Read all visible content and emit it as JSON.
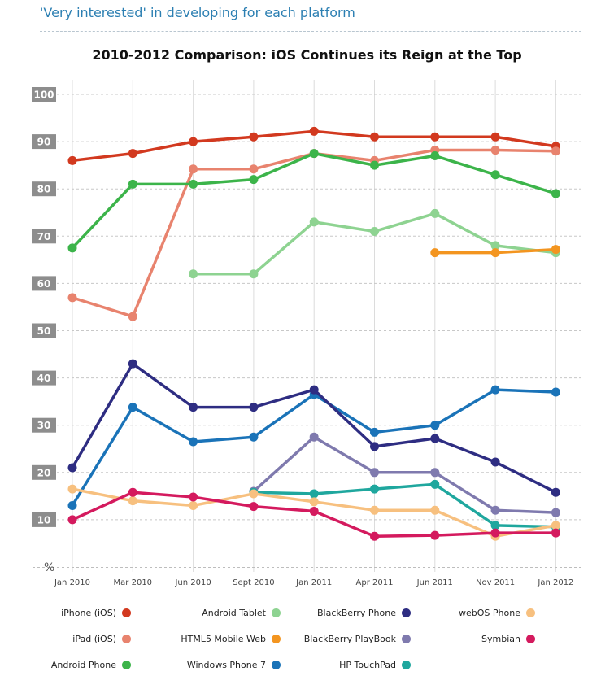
{
  "header": {
    "title": "'Very interested' in developing for each platform"
  },
  "chart_data": {
    "type": "line",
    "title": "2010-2012 Comparison: iOS Continues its Reign at the Top",
    "ylabel": "%",
    "xlabel": "",
    "ylim": [
      0,
      100
    ],
    "yticks": [
      "10",
      "20",
      "30",
      "40",
      "50",
      "60",
      "70",
      "80",
      "90",
      "100"
    ],
    "categories": [
      "Jan 2010",
      "Mar 2010",
      "Jun 2010",
      "Sept 2010",
      "Jan 2011",
      "Apr 2011",
      "Jun 2011",
      "Nov 2011",
      "Jan 2012"
    ],
    "grid": true,
    "legend_position": "bottom",
    "series": [
      {
        "name": "iPhone (iOS)",
        "color": "#d2391f",
        "values": [
          86,
          87.5,
          90,
          91,
          92.2,
          91,
          91,
          91,
          89
        ]
      },
      {
        "name": "iPad (iOS)",
        "color": "#e8836e",
        "values": [
          57,
          53,
          84.2,
          84.2,
          87.5,
          86,
          88.2,
          88.2,
          88
        ]
      },
      {
        "name": "Android Phone",
        "color": "#3cb44a",
        "values": [
          67.5,
          81,
          81,
          82,
          87.5,
          85,
          87,
          83,
          79
        ]
      },
      {
        "name": "Android Tablet",
        "color": "#8ed391",
        "values": [
          null,
          null,
          62,
          62,
          73,
          71,
          74.8,
          68,
          66.5
        ]
      },
      {
        "name": "HTML5 Mobile Web",
        "color": "#f39520",
        "values": [
          null,
          null,
          null,
          null,
          null,
          null,
          66.5,
          66.5,
          67.2
        ]
      },
      {
        "name": "Windows Phone 7",
        "color": "#1a73b8",
        "values": [
          13,
          33.8,
          26.5,
          27.5,
          36.5,
          28.5,
          30,
          37.5,
          37
        ]
      },
      {
        "name": "BlackBerry Phone",
        "color": "#2e2d82",
        "values": [
          21,
          43,
          33.8,
          33.8,
          37.5,
          25.5,
          27.2,
          22.2,
          15.8
        ]
      },
      {
        "name": "BlackBerry PlayBook",
        "color": "#7f7aae",
        "values": [
          null,
          null,
          null,
          16,
          27.5,
          20,
          20,
          12,
          11.5
        ]
      },
      {
        "name": "HP TouchPad",
        "color": "#1fa79e",
        "values": [
          null,
          null,
          null,
          15.8,
          15.5,
          16.5,
          17.5,
          8.8,
          8.5
        ]
      },
      {
        "name": "webOS Phone",
        "color": "#f7c07f",
        "values": [
          16.5,
          14,
          13,
          15.5,
          13.8,
          12,
          12,
          6.5,
          8.8
        ]
      },
      {
        "name": "Symbian",
        "color": "#d41a5e",
        "values": [
          10,
          15.8,
          14.8,
          12.8,
          11.8,
          6.5,
          6.7,
          7.2,
          7.2
        ]
      }
    ]
  }
}
